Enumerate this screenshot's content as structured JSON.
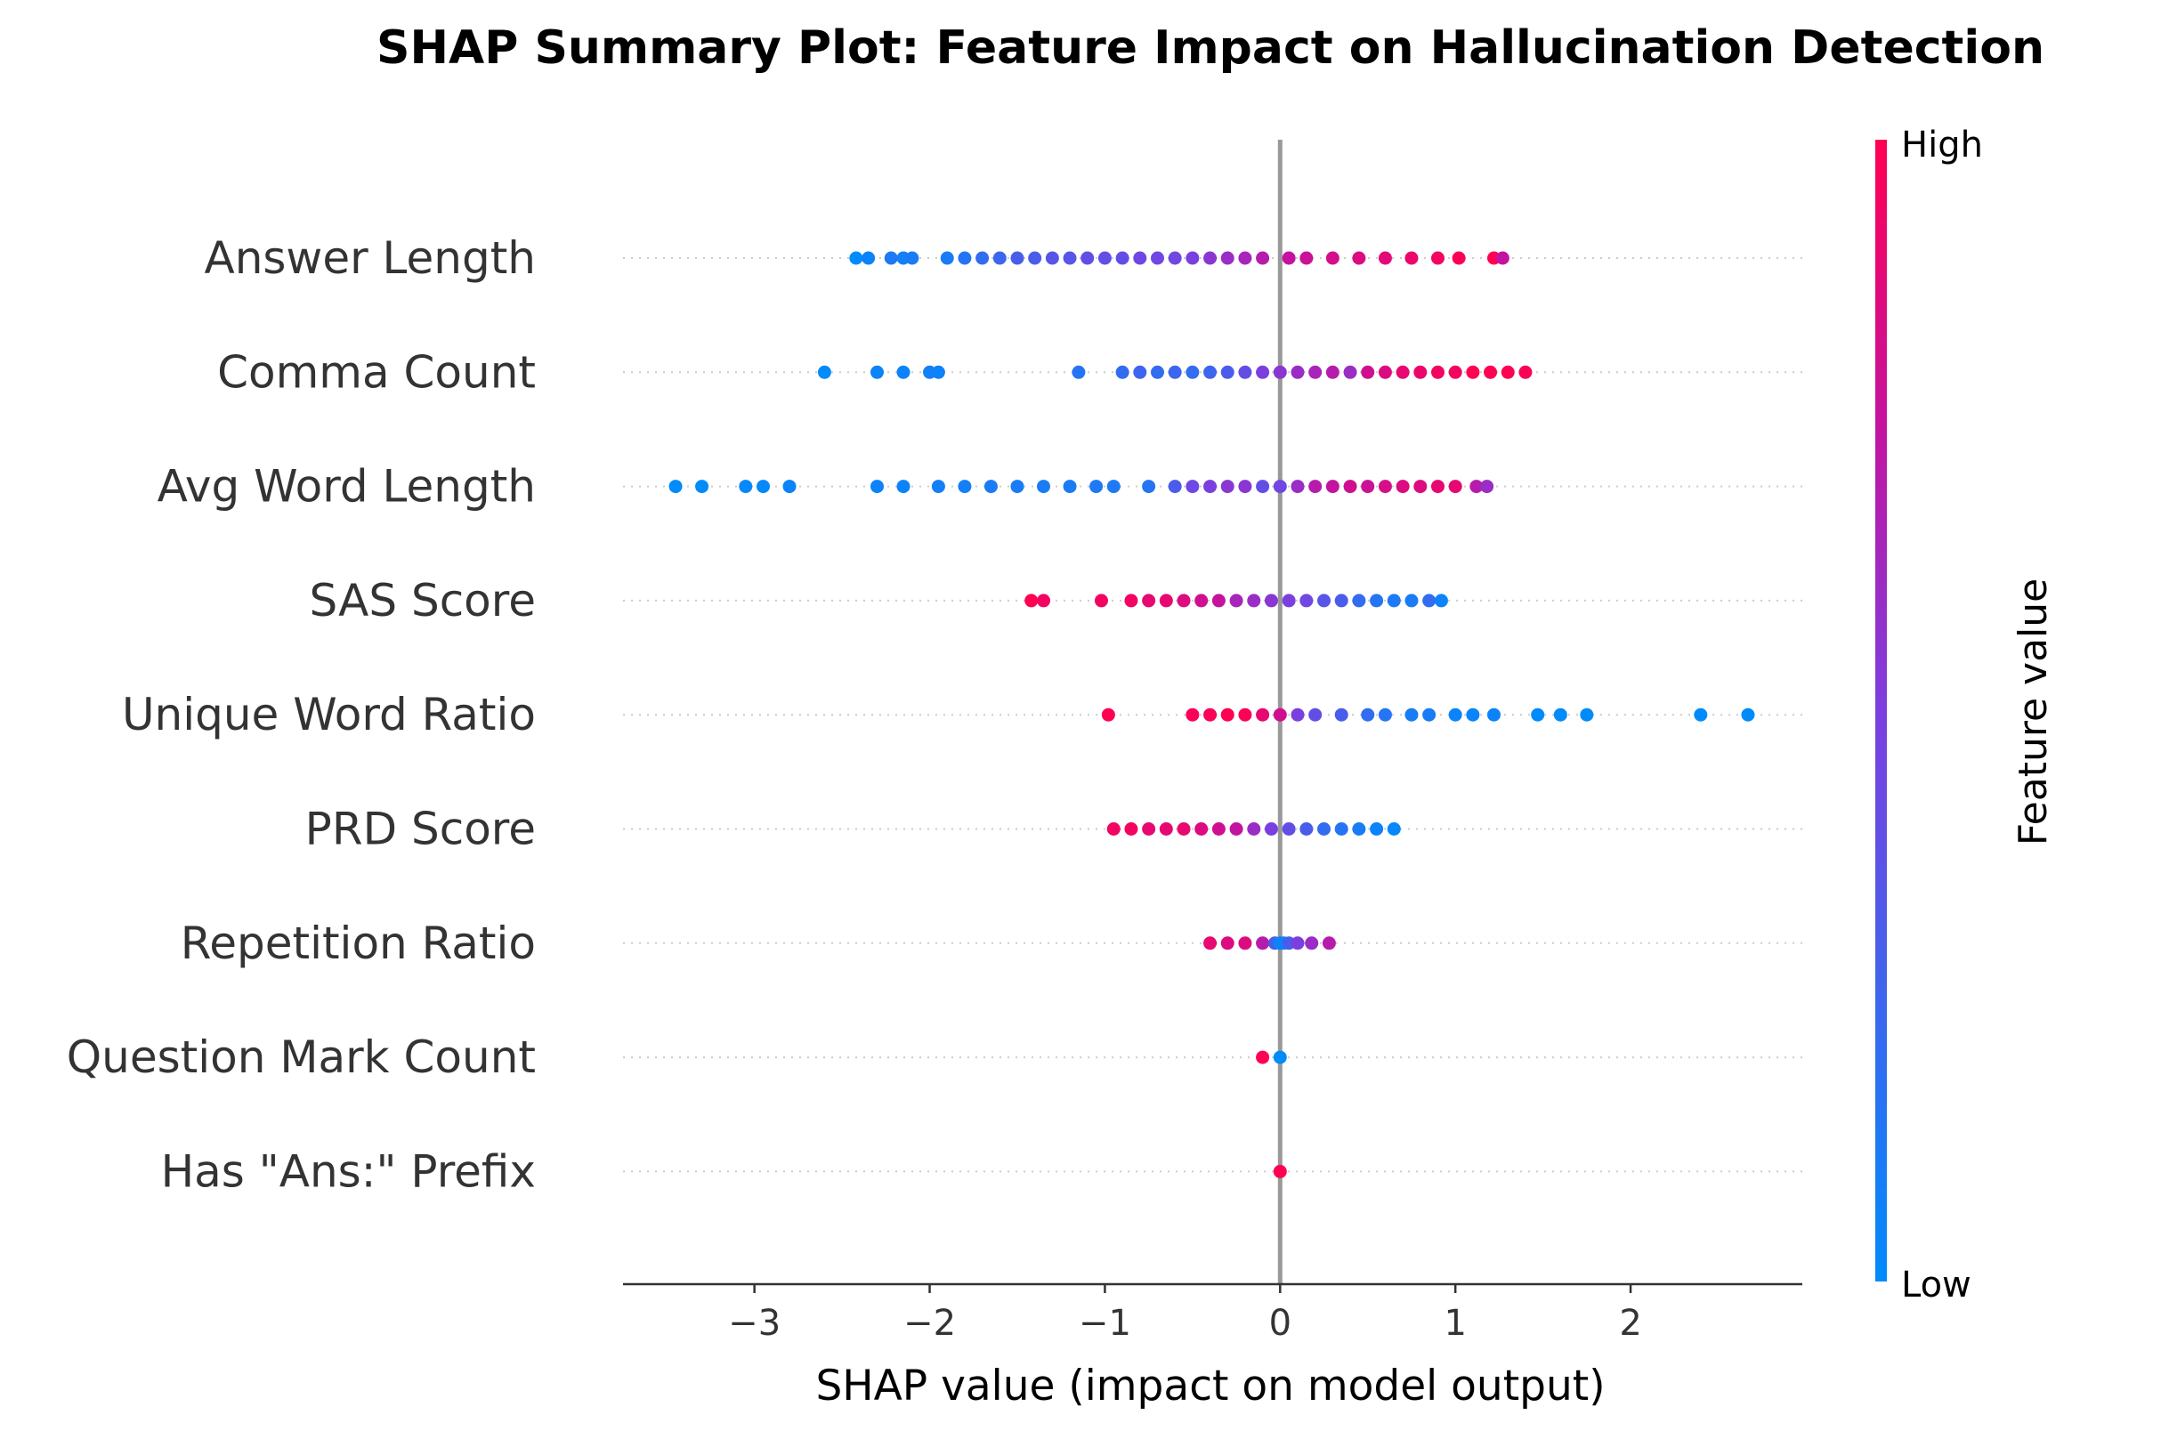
{
  "chart_data": {
    "type": "scatter",
    "subtype": "shap-beeswarm",
    "title": "SHAP Summary Plot: Feature Impact on Hallucination Detection",
    "xlabel": "SHAP value (impact on model output)",
    "xlim": [
      -3.75,
      2.98
    ],
    "xticks": [
      -3,
      -2,
      -1,
      0,
      1,
      2
    ],
    "xtick_labels": [
      "−3",
      "−2",
      "−1",
      "0",
      "1",
      "2"
    ],
    "zero_line": true,
    "colorbar": {
      "title": "Feature value",
      "high_label": "High",
      "low_label": "Low",
      "low_color": "#008bfb",
      "high_color": "#ff0052"
    },
    "features": [
      {
        "name": "Answer Length",
        "points": [
          [
            -2.42,
            0.0
          ],
          [
            -2.35,
            0.05
          ],
          [
            -2.22,
            0.12
          ],
          [
            -2.15,
            0.08
          ],
          [
            -2.1,
            0.1
          ],
          [
            -1.9,
            0.1
          ],
          [
            -1.8,
            0.15
          ],
          [
            -1.7,
            0.2
          ],
          [
            -1.6,
            0.25
          ],
          [
            -1.5,
            0.3
          ],
          [
            -1.4,
            0.3
          ],
          [
            -1.3,
            0.35
          ],
          [
            -1.2,
            0.35
          ],
          [
            -1.1,
            0.4
          ],
          [
            -1.0,
            0.4
          ],
          [
            -0.9,
            0.4
          ],
          [
            -0.8,
            0.45
          ],
          [
            -0.7,
            0.45
          ],
          [
            -0.6,
            0.45
          ],
          [
            -0.5,
            0.5
          ],
          [
            -0.4,
            0.55
          ],
          [
            -0.3,
            0.6
          ],
          [
            -0.2,
            0.65
          ],
          [
            -0.1,
            0.7
          ],
          [
            0.05,
            0.75
          ],
          [
            0.15,
            0.78
          ],
          [
            0.3,
            0.82
          ],
          [
            0.45,
            0.85
          ],
          [
            0.6,
            0.88
          ],
          [
            0.75,
            0.92
          ],
          [
            0.9,
            0.95
          ],
          [
            1.02,
            0.98
          ],
          [
            1.22,
            1.0
          ],
          [
            1.27,
            0.75
          ]
        ]
      },
      {
        "name": "Comma Count",
        "points": [
          [
            -2.6,
            0.0
          ],
          [
            -2.3,
            0.05
          ],
          [
            -2.15,
            0.05
          ],
          [
            -2.0,
            0.08
          ],
          [
            -1.95,
            0.05
          ],
          [
            -1.15,
            0.15
          ],
          [
            -0.9,
            0.2
          ],
          [
            -0.8,
            0.25
          ],
          [
            -0.7,
            0.2
          ],
          [
            -0.6,
            0.25
          ],
          [
            -0.5,
            0.2
          ],
          [
            -0.4,
            0.25
          ],
          [
            -0.3,
            0.3
          ],
          [
            -0.2,
            0.4
          ],
          [
            -0.1,
            0.5
          ],
          [
            0.0,
            0.55
          ],
          [
            0.1,
            0.6
          ],
          [
            0.2,
            0.65
          ],
          [
            0.3,
            0.7
          ],
          [
            0.4,
            0.6
          ],
          [
            0.5,
            0.8
          ],
          [
            0.6,
            0.85
          ],
          [
            0.7,
            0.9
          ],
          [
            0.8,
            0.92
          ],
          [
            0.9,
            0.95
          ],
          [
            1.0,
            0.95
          ],
          [
            1.1,
            1.0
          ],
          [
            1.2,
            1.0
          ],
          [
            1.3,
            1.0
          ],
          [
            1.4,
            0.98
          ]
        ]
      },
      {
        "name": "Avg Word Length",
        "points": [
          [
            -3.45,
            0.0
          ],
          [
            -3.3,
            0.0
          ],
          [
            -3.05,
            0.02
          ],
          [
            -2.95,
            0.02
          ],
          [
            -2.8,
            0.05
          ],
          [
            -2.3,
            0.05
          ],
          [
            -2.15,
            0.05
          ],
          [
            -1.95,
            0.08
          ],
          [
            -1.8,
            0.08
          ],
          [
            -1.65,
            0.1
          ],
          [
            -1.5,
            0.1
          ],
          [
            -1.35,
            0.1
          ],
          [
            -1.2,
            0.1
          ],
          [
            -1.05,
            0.12
          ],
          [
            -0.95,
            0.12
          ],
          [
            -0.75,
            0.15
          ],
          [
            -0.6,
            0.3
          ],
          [
            -0.5,
            0.45
          ],
          [
            -0.4,
            0.5
          ],
          [
            -0.3,
            0.55
          ],
          [
            -0.2,
            0.55
          ],
          [
            -0.1,
            0.4
          ],
          [
            0.0,
            0.45
          ],
          [
            0.1,
            0.6
          ],
          [
            0.2,
            0.7
          ],
          [
            0.3,
            0.75
          ],
          [
            0.4,
            0.8
          ],
          [
            0.5,
            0.78
          ],
          [
            0.6,
            0.82
          ],
          [
            0.7,
            0.85
          ],
          [
            0.8,
            0.85
          ],
          [
            0.9,
            0.9
          ],
          [
            1.0,
            0.9
          ],
          [
            1.12,
            0.7
          ],
          [
            1.18,
            0.6
          ]
        ]
      },
      {
        "name": "SAS Score",
        "points": [
          [
            -1.42,
            1.0
          ],
          [
            -1.35,
            0.95
          ],
          [
            -1.02,
            0.95
          ],
          [
            -0.85,
            0.95
          ],
          [
            -0.75,
            0.9
          ],
          [
            -0.65,
            0.9
          ],
          [
            -0.55,
            0.85
          ],
          [
            -0.45,
            0.8
          ],
          [
            -0.35,
            0.75
          ],
          [
            -0.25,
            0.65
          ],
          [
            -0.15,
            0.6
          ],
          [
            -0.05,
            0.55
          ],
          [
            0.05,
            0.5
          ],
          [
            0.15,
            0.45
          ],
          [
            0.25,
            0.35
          ],
          [
            0.35,
            0.3
          ],
          [
            0.45,
            0.2
          ],
          [
            0.55,
            0.15
          ],
          [
            0.65,
            0.12
          ],
          [
            0.75,
            0.1
          ],
          [
            0.85,
            0.2
          ],
          [
            0.92,
            0.05
          ]
        ]
      },
      {
        "name": "Unique Word Ratio",
        "points": [
          [
            -0.98,
            1.0
          ],
          [
            -0.5,
            0.98
          ],
          [
            -0.4,
            0.98
          ],
          [
            -0.3,
            1.0
          ],
          [
            -0.2,
            0.98
          ],
          [
            -0.1,
            0.9
          ],
          [
            0.0,
            0.8
          ],
          [
            0.1,
            0.5
          ],
          [
            0.2,
            0.4
          ],
          [
            0.35,
            0.3
          ],
          [
            0.5,
            0.2
          ],
          [
            0.6,
            0.15
          ],
          [
            0.75,
            0.1
          ],
          [
            0.85,
            0.1
          ],
          [
            1.0,
            0.05
          ],
          [
            1.1,
            0.05
          ],
          [
            1.22,
            0.05
          ],
          [
            1.47,
            0.0
          ],
          [
            1.6,
            0.0
          ],
          [
            1.75,
            0.0
          ],
          [
            2.4,
            0.0
          ],
          [
            2.67,
            0.0
          ]
        ]
      },
      {
        "name": "PRD Score",
        "points": [
          [
            -0.95,
            0.95
          ],
          [
            -0.85,
            0.95
          ],
          [
            -0.75,
            0.9
          ],
          [
            -0.65,
            0.9
          ],
          [
            -0.55,
            0.9
          ],
          [
            -0.45,
            0.85
          ],
          [
            -0.35,
            0.8
          ],
          [
            -0.25,
            0.75
          ],
          [
            -0.15,
            0.6
          ],
          [
            -0.05,
            0.5
          ],
          [
            0.05,
            0.4
          ],
          [
            0.15,
            0.3
          ],
          [
            0.25,
            0.2
          ],
          [
            0.35,
            0.15
          ],
          [
            0.45,
            0.1
          ],
          [
            0.55,
            0.05
          ],
          [
            0.65,
            0.02
          ]
        ]
      },
      {
        "name": "Repetition Ratio",
        "points": [
          [
            -0.4,
            0.9
          ],
          [
            -0.3,
            0.85
          ],
          [
            -0.2,
            0.85
          ],
          [
            -0.1,
            0.7
          ],
          [
            -0.03,
            0.3
          ],
          [
            0.0,
            0.02
          ],
          [
            0.02,
            0.05
          ],
          [
            0.05,
            0.3
          ],
          [
            0.1,
            0.5
          ],
          [
            0.18,
            0.6
          ],
          [
            0.28,
            0.7
          ]
        ]
      },
      {
        "name": "Question Mark Count",
        "points": [
          [
            -0.1,
            1.0
          ],
          [
            0.0,
            0.0
          ]
        ]
      },
      {
        "name": "Has \"Ans:\" Prefix",
        "points": [
          [
            0.0,
            1.0
          ]
        ]
      }
    ]
  }
}
